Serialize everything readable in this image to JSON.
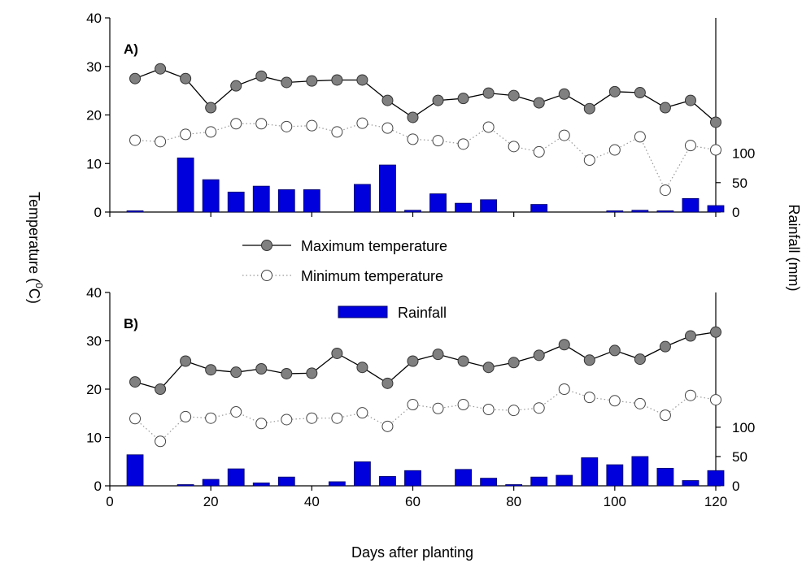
{
  "figure": {
    "xlabel": "Days after planting",
    "ylabel_left": "Temperature (",
    "ylabel_left_sup": "0",
    "ylabel_left_tail": "C)",
    "ylabel_right": "Rainfall (mm)"
  },
  "legend": {
    "max_label": "Maximum temperature",
    "min_label": "Minimum temperature",
    "rain_label": "Rainfall"
  },
  "colors": {
    "max_marker": "#808080",
    "bar": "#0000dd",
    "bar_stroke": "#000066",
    "line": "#000000",
    "min_line": "#999999"
  },
  "chart_data": [
    {
      "type": "line",
      "panel": "A)",
      "x": [
        5,
        10,
        15,
        20,
        25,
        30,
        35,
        40,
        45,
        50,
        55,
        60,
        65,
        70,
        75,
        80,
        85,
        90,
        95,
        100,
        105,
        110,
        115,
        120
      ],
      "series": [
        {
          "name": "Maximum temperature",
          "axis": "left",
          "values": [
            27.5,
            29.5,
            27.5,
            21.5,
            26,
            28,
            26.7,
            27,
            27.2,
            27.2,
            23,
            19.5,
            23,
            23.4,
            24.5,
            24,
            22.5,
            24.3,
            21.3,
            24.8,
            24.6,
            21.5,
            23,
            18.5
          ]
        },
        {
          "name": "Minimum temperature",
          "axis": "left",
          "values": [
            14.8,
            14.5,
            16,
            16.5,
            18.2,
            18.2,
            17.6,
            17.8,
            16.5,
            18.3,
            17.3,
            15,
            14.7,
            14,
            17.5,
            13.5,
            12.4,
            15.8,
            10.7,
            12.8,
            15.5,
            4.5,
            13.7,
            12.8
          ]
        },
        {
          "name": "Rainfall",
          "type": "bar",
          "axis": "right",
          "values": [
            2,
            null,
            92,
            55,
            34,
            44,
            38,
            38,
            null,
            47,
            80,
            3,
            31,
            15,
            21,
            null,
            13,
            null,
            null,
            1,
            3,
            2,
            23,
            11
          ]
        }
      ],
      "xlim": [
        0,
        120
      ],
      "ylim_left": [
        0,
        40
      ],
      "yticks_left": [
        0,
        10,
        20,
        30,
        40
      ],
      "ylim_right": [
        0,
        330
      ],
      "yticks_right": [
        0,
        50,
        100
      ]
    },
    {
      "type": "line",
      "panel": "B)",
      "x": [
        5,
        10,
        15,
        20,
        25,
        30,
        35,
        40,
        45,
        50,
        55,
        60,
        65,
        70,
        75,
        80,
        85,
        90,
        95,
        100,
        105,
        110,
        115,
        120
      ],
      "series": [
        {
          "name": "Maximum temperature",
          "axis": "left",
          "values": [
            21.5,
            20,
            25.8,
            24,
            23.5,
            24.2,
            23.2,
            23.3,
            27.4,
            24.5,
            21.2,
            25.8,
            27.2,
            25.8,
            24.5,
            25.5,
            27,
            29.2,
            26,
            28,
            26.2,
            28.8,
            31,
            31.8
          ]
        },
        {
          "name": "Minimum temperature",
          "axis": "left",
          "values": [
            13.9,
            9.2,
            14.3,
            14,
            15.3,
            12.9,
            13.7,
            14,
            14,
            15.1,
            12.3,
            16.8,
            16,
            16.8,
            15.8,
            15.6,
            16.1,
            20,
            18.3,
            17.6,
            17,
            14.6,
            18.7,
            17.8
          ]
        },
        {
          "name": "Rainfall",
          "type": "bar",
          "axis": "right",
          "values": [
            53,
            null,
            1,
            11,
            29,
            5,
            15,
            null,
            7,
            41,
            16,
            26,
            null,
            28,
            13,
            1,
            15,
            18,
            48,
            36,
            50,
            30,
            9,
            26
          ]
        }
      ],
      "xlim": [
        0,
        120
      ],
      "xticks": [
        0,
        20,
        40,
        60,
        80,
        100,
        120
      ],
      "ylim_left": [
        0,
        40
      ],
      "yticks_left": [
        0,
        10,
        20,
        30,
        40
      ],
      "ylim_right": [
        0,
        330
      ],
      "yticks_right": [
        0,
        50,
        100
      ]
    }
  ]
}
